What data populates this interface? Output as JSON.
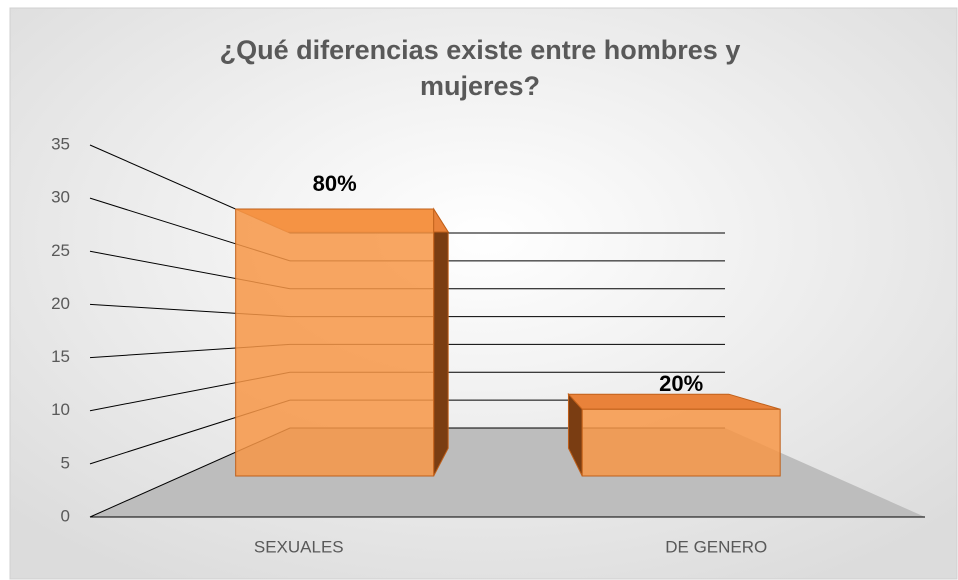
{
  "chart_data": {
    "type": "bar3d",
    "title": [
      "¿Qué diferencias existe entre hombres y",
      "mujeres?"
    ],
    "categories": [
      "SEXUALES",
      "DE GENERO"
    ],
    "values": [
      32,
      8
    ],
    "annotations": [
      "80%",
      "20%"
    ],
    "color": "#f79646",
    "ylim": [
      0,
      35
    ],
    "yticks": [
      0,
      5,
      10,
      15,
      20,
      25,
      30,
      35
    ],
    "grid": true
  }
}
